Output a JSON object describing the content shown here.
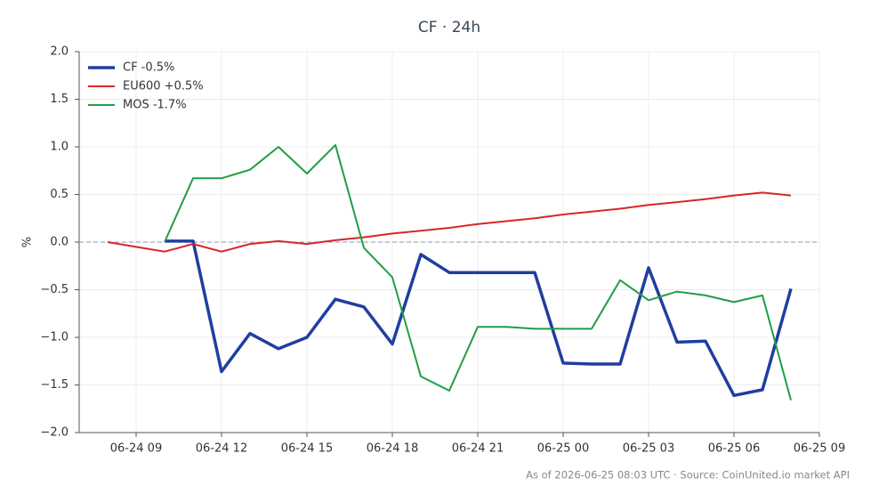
{
  "chart_data": {
    "type": "line",
    "title": "CF · 24h",
    "ylabel": "%",
    "footer": "As of 2026-06-25 08:03 UTC · Source: CoinUnited.io market API",
    "x": [
      "06-24 08",
      "06-24 09",
      "06-24 10",
      "06-24 11",
      "06-24 12",
      "06-24 13",
      "06-24 14",
      "06-24 15",
      "06-24 16",
      "06-24 17",
      "06-24 18",
      "06-24 19",
      "06-24 20",
      "06-24 21",
      "06-24 22",
      "06-24 23",
      "06-25 00",
      "06-25 01",
      "06-25 02",
      "06-25 03",
      "06-25 04",
      "06-25 05",
      "06-25 06",
      "06-25 07",
      "06-25 08"
    ],
    "series": [
      {
        "name": "CF -0.5%",
        "color": "#1f3f9f",
        "linewidth": 3.5,
        "values": [
          null,
          null,
          0.01,
          0.01,
          -1.36,
          -0.96,
          -1.12,
          -1.0,
          -0.6,
          -0.68,
          -1.07,
          -0.13,
          -0.32,
          -0.32,
          -0.32,
          -0.32,
          -1.27,
          -1.28,
          -1.28,
          -0.27,
          -1.05,
          -1.04,
          -1.61,
          -1.55,
          -0.49
        ]
      },
      {
        "name": "EU600 +0.5%",
        "color": "#d62728",
        "linewidth": 2,
        "values": [
          0.0,
          -0.05,
          -0.1,
          -0.02,
          -0.1,
          -0.02,
          0.01,
          -0.02,
          0.02,
          0.05,
          0.09,
          0.12,
          0.15,
          0.19,
          0.22,
          0.25,
          0.29,
          0.32,
          0.35,
          0.39,
          0.42,
          0.45,
          0.49,
          0.52,
          0.49
        ]
      },
      {
        "name": "MOS -1.7%",
        "color": "#1f9e45",
        "linewidth": 2,
        "values": [
          null,
          null,
          0.0,
          0.67,
          0.67,
          0.76,
          1.0,
          0.72,
          1.02,
          -0.06,
          -0.37,
          -1.41,
          -1.56,
          -0.89,
          -0.89,
          -0.91,
          -0.91,
          -0.91,
          -0.4,
          -0.61,
          -0.52,
          -0.56,
          -0.63,
          -0.56,
          -1.66
        ]
      }
    ],
    "xlim": [
      "06-24 07",
      "06-25 09"
    ],
    "xticks": [
      "06-24 09",
      "06-24 12",
      "06-24 15",
      "06-24 18",
      "06-24 21",
      "06-25 00",
      "06-25 03",
      "06-25 06",
      "06-25 09"
    ],
    "ylim": [
      -2,
      2
    ],
    "yticks": [
      {
        "value": -2,
        "label": "−2.0"
      },
      {
        "value": -1.5,
        "label": "−1.5"
      },
      {
        "value": -1,
        "label": "−1.0"
      },
      {
        "value": -0.5,
        "label": "−0.5"
      },
      {
        "value": 0,
        "label": "0.0"
      },
      {
        "value": 0.5,
        "label": "0.5"
      },
      {
        "value": 1,
        "label": "1.0"
      },
      {
        "value": 1.5,
        "label": "1.5"
      },
      {
        "value": 2,
        "label": "2.0"
      }
    ],
    "reference_line": 0,
    "grid": true,
    "legend": "upper left"
  }
}
